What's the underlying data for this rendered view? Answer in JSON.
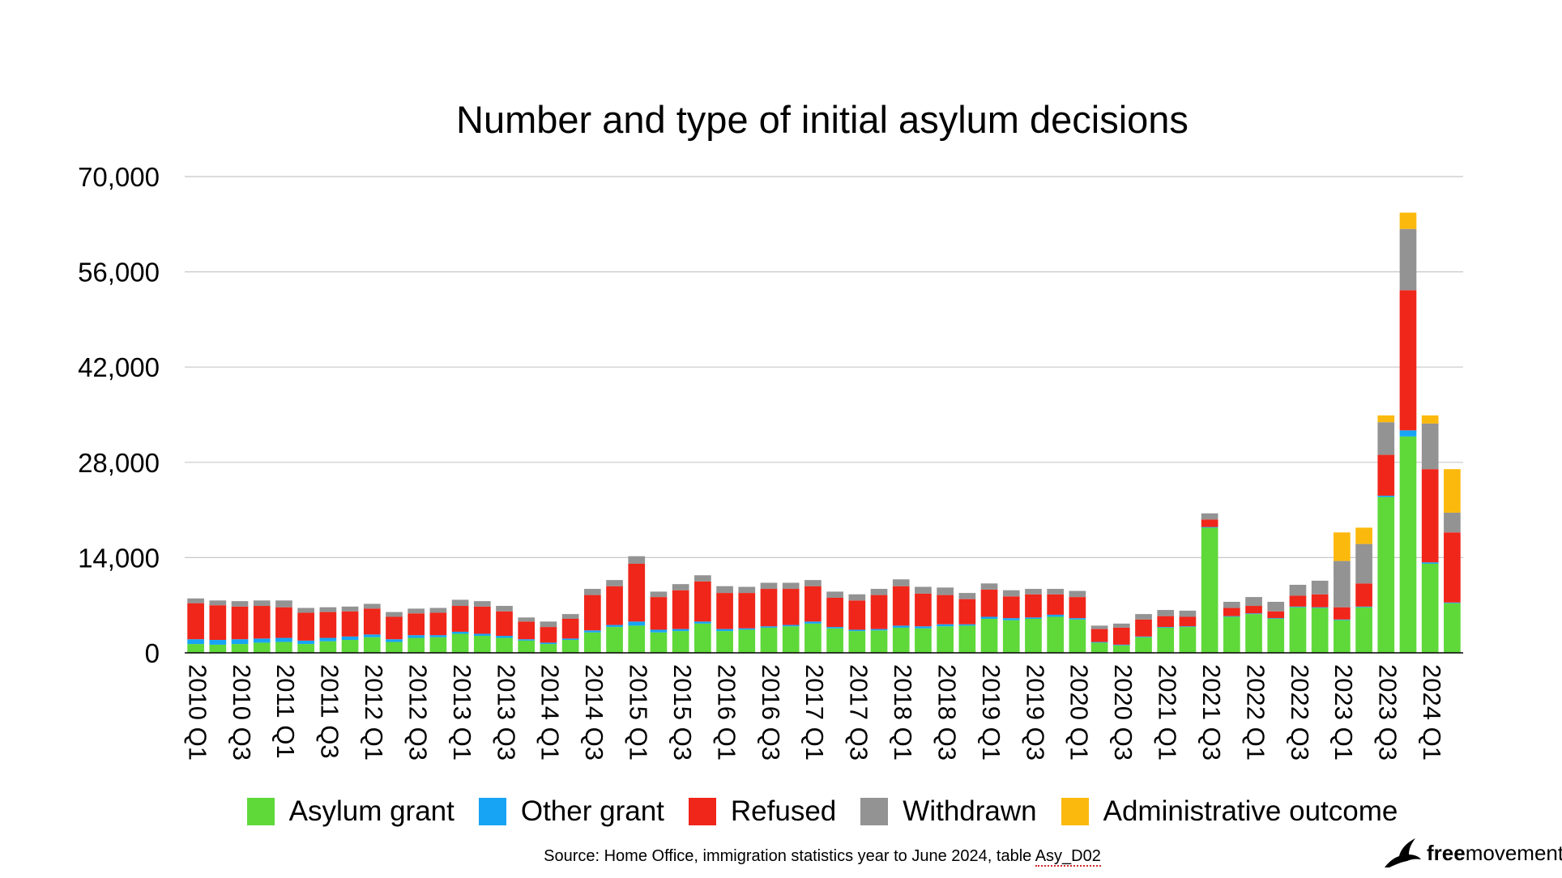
{
  "chart_data": {
    "type": "bar",
    "stacked": true,
    "title": "Number and type of initial asylum decisions",
    "xlabel": "",
    "ylabel": "",
    "ylim": [
      0,
      70000
    ],
    "yticks": [
      0,
      14000,
      28000,
      42000,
      56000,
      70000
    ],
    "ytick_labels": [
      "0",
      "14,000",
      "28,000",
      "42,000",
      "56,000",
      "70,000"
    ],
    "grid": true,
    "legend_position": "bottom",
    "categories": [
      "2010 Q1",
      "2010 Q2",
      "2010 Q3",
      "2010 Q4",
      "2011 Q1",
      "2011 Q2",
      "2011 Q3",
      "2011 Q4",
      "2012 Q1",
      "2012 Q2",
      "2012 Q3",
      "2012 Q4",
      "2013 Q1",
      "2013 Q2",
      "2013 Q3",
      "2013 Q4",
      "2014 Q1",
      "2014 Q2",
      "2014 Q3",
      "2014 Q4",
      "2015 Q1",
      "2015 Q2",
      "2015 Q3",
      "2015 Q4",
      "2016 Q1",
      "2016 Q2",
      "2016 Q3",
      "2016 Q4",
      "2017 Q1",
      "2017 Q2",
      "2017 Q3",
      "2017 Q4",
      "2018 Q1",
      "2018 Q2",
      "2018 Q3",
      "2018 Q4",
      "2019 Q1",
      "2019 Q2",
      "2019 Q3",
      "2019 Q4",
      "2020 Q1",
      "2020 Q2",
      "2020 Q3",
      "2020 Q4",
      "2021 Q1",
      "2021 Q2",
      "2021 Q3",
      "2021 Q4",
      "2022 Q1",
      "2022 Q2",
      "2022 Q3",
      "2022 Q4",
      "2023 Q1",
      "2023 Q2",
      "2023 Q3",
      "2023 Q4",
      "2024 Q1",
      "2024 Q2"
    ],
    "shown_tick_labels": [
      "2010 Q1",
      "2010 Q3",
      "2011 Q1",
      "2011 Q3",
      "2012 Q1",
      "2012 Q3",
      "2013 Q1",
      "2013 Q3",
      "2014 Q1",
      "2014 Q3",
      "2015 Q1",
      "2015 Q3",
      "2016 Q1",
      "2016 Q3",
      "2017 Q1",
      "2017 Q3",
      "2018 Q1",
      "2018 Q3",
      "2019 Q1",
      "2019 Q3",
      "2020 Q1",
      "2020 Q3",
      "2021 Q1",
      "2021 Q3",
      "2022 Q1",
      "2022 Q3",
      "2023 Q1",
      "2023 Q3",
      "2024 Q1"
    ],
    "series": [
      {
        "name": "Asylum grant",
        "color": "#5fd83a",
        "values": [
          1300,
          1200,
          1300,
          1500,
          1600,
          1300,
          1700,
          1900,
          2300,
          1600,
          2200,
          2300,
          2800,
          2500,
          2200,
          1800,
          1300,
          1900,
          3000,
          3800,
          4000,
          3000,
          3200,
          4300,
          3200,
          3400,
          3700,
          3900,
          4300,
          3600,
          3200,
          3300,
          3700,
          3600,
          3900,
          4000,
          5000,
          4800,
          5000,
          5300,
          4900,
          1500,
          1100,
          2300,
          3700,
          3800,
          18400,
          5300,
          5700,
          5000,
          6700,
          6600,
          4800,
          6700,
          22900,
          31800,
          13100,
          7300
        ]
      },
      {
        "name": "Other grant",
        "color": "#17a4f5",
        "values": [
          700,
          700,
          700,
          600,
          600,
          500,
          500,
          500,
          400,
          400,
          400,
          300,
          300,
          300,
          300,
          200,
          200,
          200,
          300,
          300,
          600,
          400,
          300,
          300,
          300,
          200,
          200,
          200,
          300,
          200,
          200,
          200,
          300,
          300,
          300,
          200,
          300,
          300,
          200,
          300,
          200,
          100,
          100,
          100,
          100,
          100,
          100,
          100,
          100,
          100,
          100,
          100,
          100,
          100,
          200,
          900,
          200,
          100
        ]
      },
      {
        "name": "Refused",
        "color": "#f0261a",
        "values": [
          5300,
          5100,
          4800,
          4800,
          4500,
          4100,
          3800,
          3700,
          3800,
          3300,
          3200,
          3300,
          3800,
          4000,
          3600,
          2600,
          2300,
          2900,
          5200,
          5700,
          8500,
          4800,
          5700,
          5900,
          5300,
          5200,
          5500,
          5300,
          5200,
          4300,
          4300,
          5000,
          5800,
          4800,
          4300,
          3700,
          4000,
          3200,
          3400,
          3000,
          3100,
          1900,
          2500,
          2500,
          1600,
          1400,
          1100,
          1200,
          1100,
          1000,
          1600,
          1900,
          1800,
          3400,
          6000,
          20600,
          13700,
          10300
        ]
      },
      {
        "name": "Withdrawn",
        "color": "#939393",
        "values": [
          700,
          700,
          800,
          800,
          1000,
          700,
          700,
          700,
          700,
          700,
          700,
          700,
          900,
          800,
          800,
          600,
          800,
          700,
          900,
          900,
          1100,
          800,
          900,
          900,
          1000,
          900,
          900,
          900,
          900,
          900,
          900,
          900,
          1000,
          1000,
          1100,
          900,
          900,
          900,
          800,
          800,
          900,
          500,
          600,
          800,
          900,
          900,
          900,
          900,
          1300,
          1400,
          1600,
          2000,
          6800,
          5800,
          4800,
          9000,
          6700,
          2900
        ]
      },
      {
        "name": "Administrative outcome",
        "color": "#fcb90d",
        "values": [
          0,
          0,
          0,
          0,
          0,
          0,
          0,
          0,
          0,
          0,
          0,
          0,
          0,
          0,
          0,
          0,
          0,
          0,
          0,
          0,
          0,
          0,
          0,
          0,
          0,
          0,
          0,
          0,
          0,
          0,
          0,
          0,
          0,
          0,
          0,
          0,
          0,
          0,
          0,
          0,
          0,
          0,
          0,
          0,
          0,
          0,
          0,
          0,
          0,
          0,
          0,
          0,
          4200,
          2400,
          1000,
          2400,
          1200,
          6400
        ]
      }
    ]
  },
  "legend": [
    {
      "label": "Asylum grant",
      "color": "#5fd83a"
    },
    {
      "label": "Other grant",
      "color": "#17a4f5"
    },
    {
      "label": "Refused",
      "color": "#f0261a"
    },
    {
      "label": "Withdrawn",
      "color": "#939393"
    },
    {
      "label": "Administrative outcome",
      "color": "#fcb90d"
    }
  ],
  "source": {
    "prefix": "Source: Home Office, immigration statistics year to June 2024, table ",
    "table": "Asy_D02"
  },
  "brand": {
    "part1": "free",
    "part2": "movement",
    "icon": "bird-logo-icon"
  }
}
